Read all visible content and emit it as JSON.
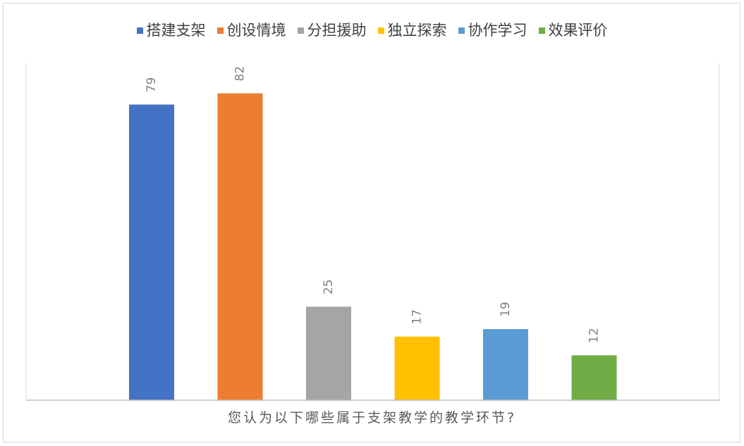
{
  "chart_data": {
    "type": "bar",
    "categories": [
      "搭建支架",
      "创设情境",
      "分担援助",
      "独立探索",
      "协作学习",
      "效果评价"
    ],
    "values": [
      79,
      82,
      25,
      17,
      19,
      12
    ],
    "colors": [
      "#4472c4",
      "#ed7d31",
      "#a5a5a5",
      "#ffc000",
      "#5b9bd5",
      "#70ad47"
    ],
    "xlabel": "您认为以下哪些属于支架教学的教学环节?",
    "ylabel": "",
    "ylim": [
      0,
      90
    ],
    "legend_position": "top",
    "grid": false,
    "data_labels": true,
    "data_label_rotation": "vertical"
  }
}
